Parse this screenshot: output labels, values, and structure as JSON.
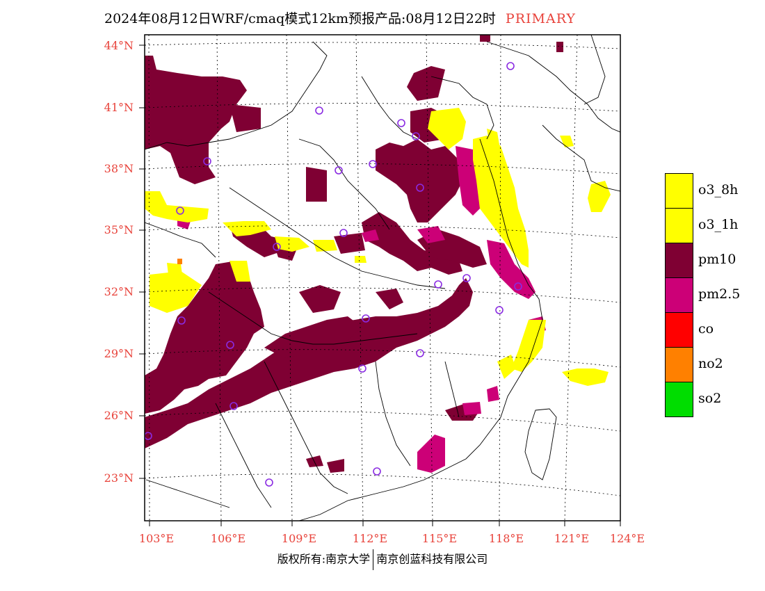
{
  "title": {
    "main": "2024年08月12日WRF/cmaq模式12km预报产品:08月12日22时",
    "tag": "PRIMARY"
  },
  "axes": {
    "lat_labels": [
      "44°N",
      "41°N",
      "38°N",
      "35°N",
      "32°N",
      "29°N",
      "26°N",
      "23°N"
    ],
    "lon_labels": [
      "103°E",
      "106°E",
      "109°E",
      "112°E",
      "115°E",
      "118°E",
      "121°E",
      "124°E"
    ]
  },
  "legend": {
    "items": [
      {
        "label": "o3_8h",
        "color": "#ffff00"
      },
      {
        "label": "o3_1h",
        "color": "#ffff00"
      },
      {
        "label": "pm10",
        "color": "#7f0033"
      },
      {
        "label": "pm2.5",
        "color": "#cc0077"
      },
      {
        "label": "co",
        "color": "#ff0000"
      },
      {
        "label": "no2",
        "color": "#ff8000"
      },
      {
        "label": "so2",
        "color": "#00dd00"
      }
    ]
  },
  "credit": {
    "left": "版权所有:南京大学",
    "right": "南京创蓝科技有限公司"
  },
  "colors": {
    "label_red": "#e8423a",
    "station_circle": "#8a2be2",
    "pm10": "#7f0033",
    "pm25": "#cc0077",
    "o3": "#ffff00"
  }
}
